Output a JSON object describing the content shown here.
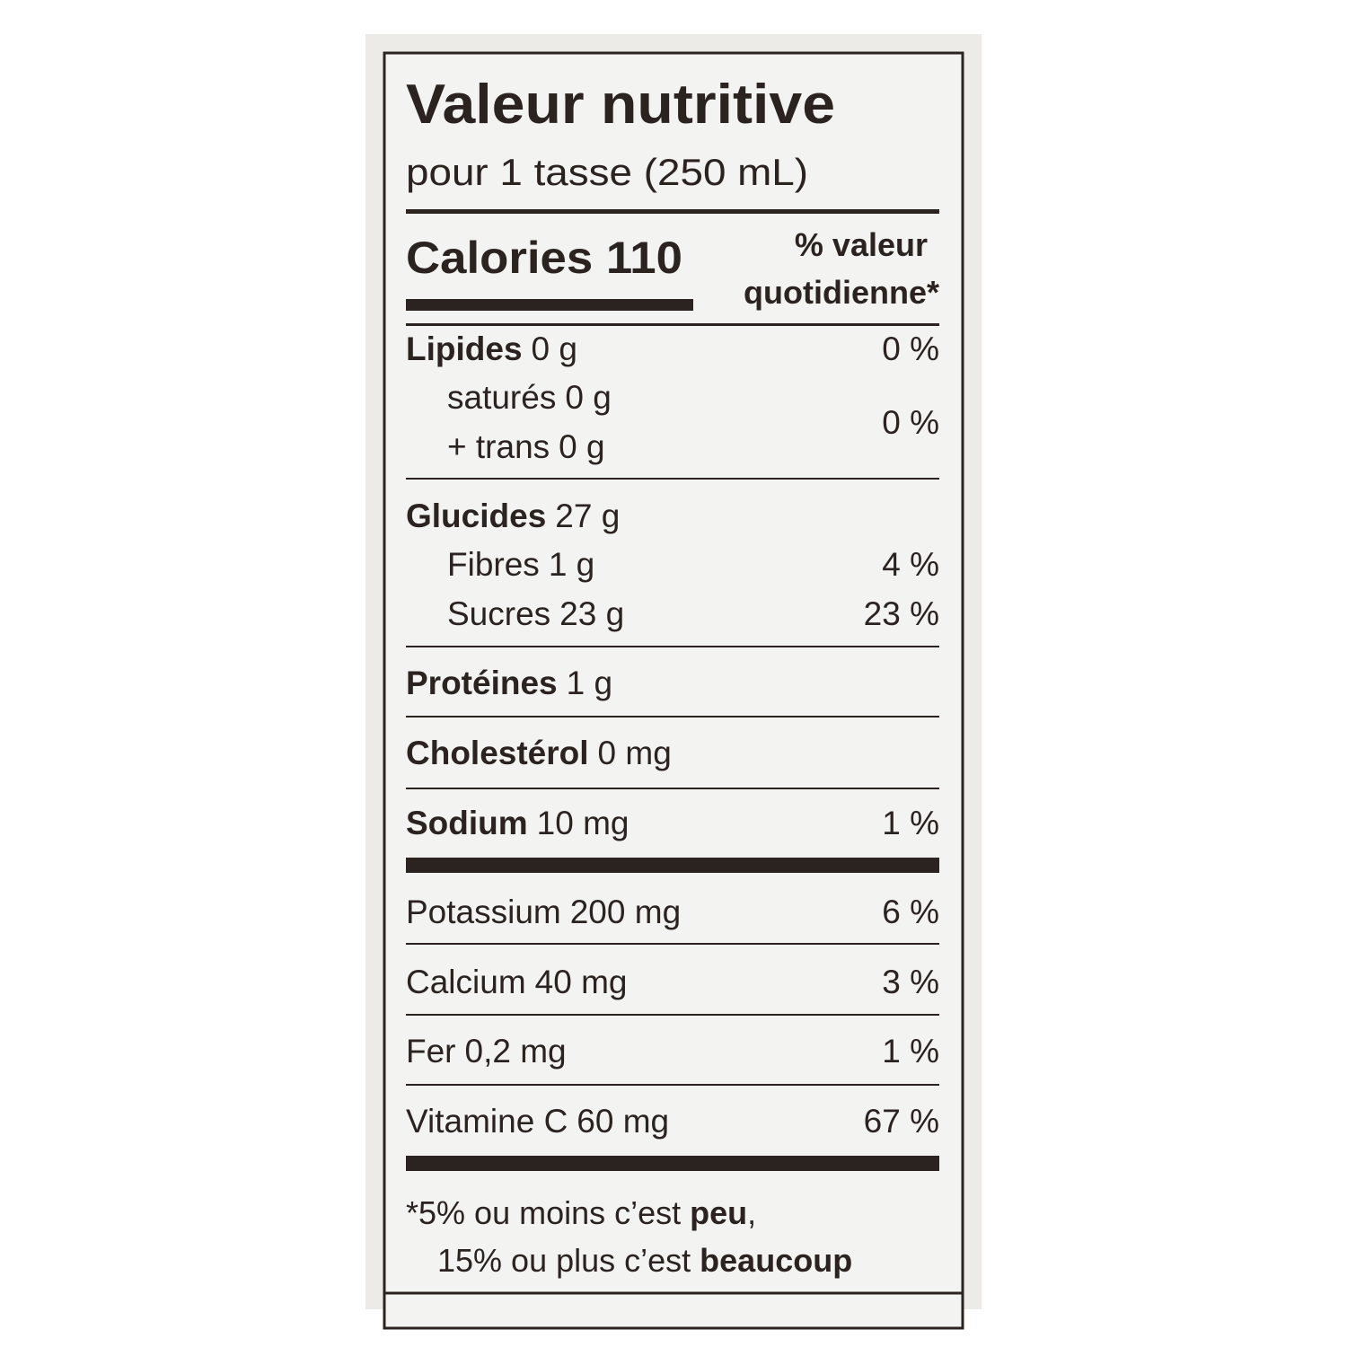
{
  "title": "Valeur nutritive",
  "serving": "pour 1 tasse (250 mL)",
  "calories": "Calories 110",
  "dv_header": [
    "% valeur",
    "quotidienne*"
  ],
  "nutrients": [
    {
      "name": "Lipides",
      "amount": "0 g",
      "dv": "0 %"
    },
    {
      "name": "saturés",
      "amount": "0 g",
      "dv": "0 %"
    },
    {
      "name": "+ trans",
      "amount": "0 g"
    },
    {
      "name": "Glucides",
      "amount": "27 g"
    },
    {
      "name": "Fibres",
      "amount": "1 g",
      "dv": "4 %"
    },
    {
      "name": "Sucres",
      "amount": "23 g",
      "dv": "23 %"
    },
    {
      "name": "Protéines",
      "amount": "1 g"
    },
    {
      "name": "Cholestérol",
      "amount": "0 mg"
    },
    {
      "name": "Sodium",
      "amount": "10 mg",
      "dv": "1 %"
    },
    {
      "name": "Potassium",
      "amount": "200 mg",
      "dv": "6 %"
    },
    {
      "name": "Calcium",
      "amount": "40 mg",
      "dv": "3 %"
    },
    {
      "name": "Fer",
      "amount": "0,2 mg",
      "dv": "1 %"
    },
    {
      "name": "Vitamine C",
      "amount": "60 mg",
      "dv": "67 %"
    }
  ],
  "footnote": [
    [
      "*5% ou moins c’est",
      "peu",
      ","
    ],
    [
      "15% ou plus c’est",
      "beaucoup"
    ]
  ]
}
